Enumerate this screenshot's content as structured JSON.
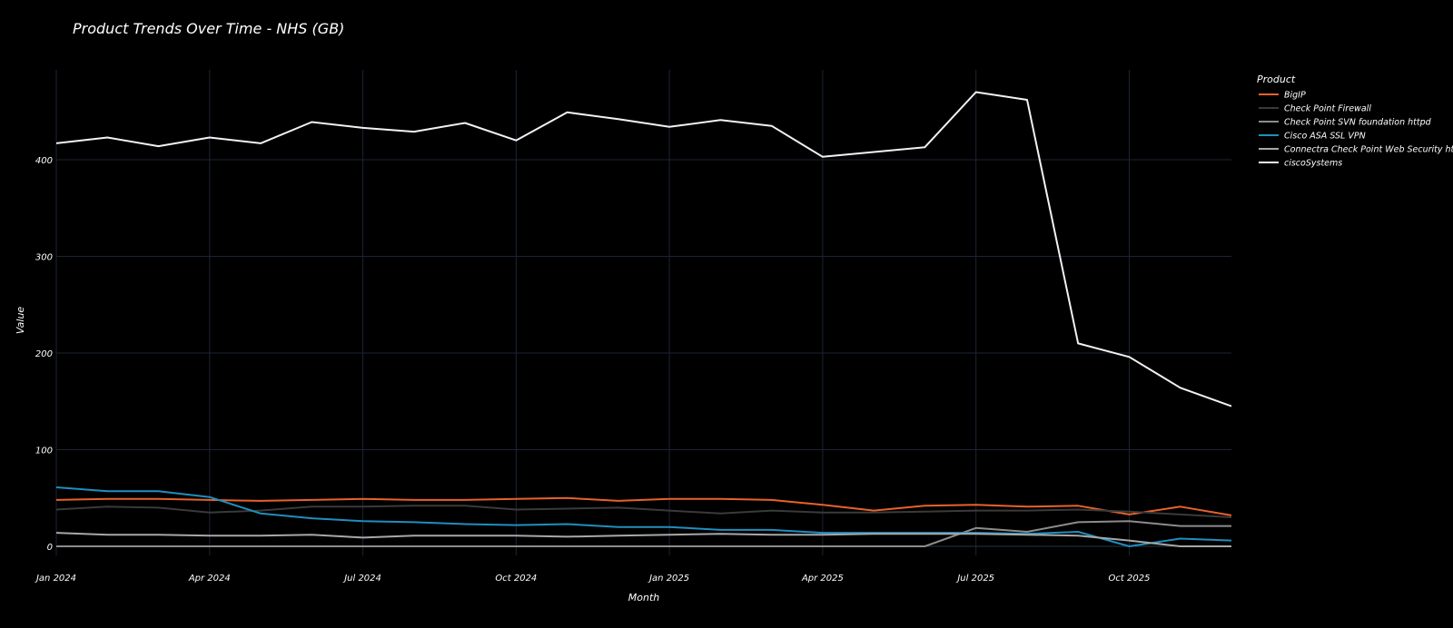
{
  "chart_data": {
    "type": "line",
    "title": "Product Trends Over Time - NHS (GB)",
    "xlabel": "Month",
    "ylabel": "Value",
    "x": [
      "2024-01",
      "2024-02",
      "2024-03",
      "2024-04",
      "2024-05",
      "2024-06",
      "2024-07",
      "2024-08",
      "2024-09",
      "2024-10",
      "2024-11",
      "2024-12",
      "2025-01",
      "2025-02",
      "2025-03",
      "2025-04",
      "2025-05",
      "2025-06",
      "2025-07",
      "2025-08",
      "2025-09",
      "2025-10",
      "2025-11",
      "2025-12"
    ],
    "x_tick_labels": [
      "Jan 2024",
      "Apr 2024",
      "Jul 2024",
      "Oct 2024",
      "Jan 2025",
      "Apr 2025",
      "Jul 2025",
      "Oct 2025"
    ],
    "x_tick_months": [
      "2024-01",
      "2024-04",
      "2024-07",
      "2024-10",
      "2025-01",
      "2025-04",
      "2025-07",
      "2025-10"
    ],
    "y_ticks": [
      0,
      100,
      200,
      300,
      400
    ],
    "ylim": [
      -5,
      485
    ],
    "grid": true,
    "legend_title": "Product",
    "legend_position": "top-right",
    "series": [
      {
        "name": "BigIP",
        "color": "#e8622c",
        "values": [
          48,
          49,
          49,
          48,
          47,
          48,
          49,
          48,
          48,
          49,
          50,
          47,
          49,
          49,
          48,
          43,
          37,
          42,
          43,
          41,
          42,
          33,
          41,
          32
        ]
      },
      {
        "name": "Check Point Firewall",
        "color": "#3a3a3a",
        "values": [
          38,
          41,
          40,
          35,
          37,
          41,
          41,
          42,
          42,
          38,
          39,
          40,
          37,
          34,
          37,
          35,
          35,
          36,
          37,
          37,
          38,
          36,
          33,
          30
        ]
      },
      {
        "name": "Check Point SVN foundation httpd",
        "color": "#8c8c8c",
        "values": [
          0,
          0,
          0,
          0,
          0,
          0,
          0,
          0,
          0,
          0,
          0,
          0,
          0,
          0,
          0,
          0,
          0,
          0,
          19,
          15,
          25,
          26,
          21,
          21
        ]
      },
      {
        "name": "Cisco ASA SSL VPN",
        "color": "#1e8fbf",
        "values": [
          61,
          57,
          57,
          51,
          34,
          29,
          26,
          25,
          23,
          22,
          23,
          20,
          20,
          17,
          17,
          14,
          14,
          14,
          14,
          13,
          15,
          0,
          8,
          6
        ]
      },
      {
        "name": "Connectra Check Point Web Security httpd",
        "color": "#a8a8a8",
        "values": [
          14,
          12,
          12,
          11,
          11,
          12,
          9,
          11,
          11,
          11,
          10,
          11,
          12,
          13,
          12,
          12,
          13,
          13,
          13,
          12,
          11,
          6,
          0,
          0
        ]
      },
      {
        "name": "ciscoSystems",
        "color": "#f2f2f2",
        "values": [
          417,
          423,
          414,
          423,
          417,
          439,
          433,
          429,
          438,
          420,
          449,
          442,
          434,
          441,
          435,
          403,
          408,
          413,
          470,
          462,
          210,
          196,
          164,
          145
        ]
      }
    ]
  }
}
